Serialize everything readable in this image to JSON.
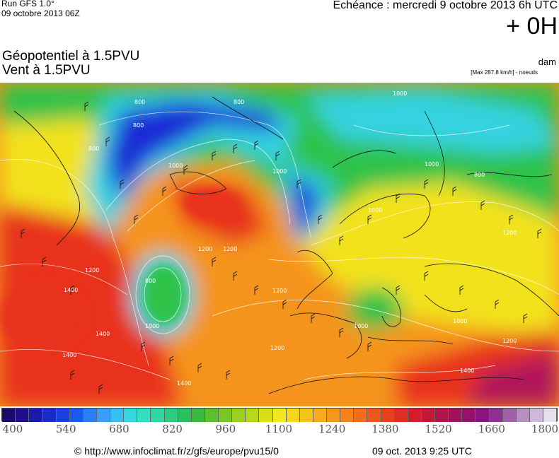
{
  "header": {
    "run": "Run GFS 1.0°",
    "run_date": "09 octobre 2013 06Z",
    "echeance": "Echéance : mercredi 9 octobre 2013 6h UTC",
    "lead_time": "+ 0H",
    "variable_1": "Géopotentiel à 1.5PVU",
    "variable_2": "Vent à 1.5PVU",
    "unit": "dam",
    "max_note": "[Max 287.8 km/h] - noeuds"
  },
  "map": {
    "contour_labels": [
      "800",
      "800",
      "1000",
      "800",
      "1000",
      "1000",
      "800",
      "1000",
      "1200",
      "1000",
      "1200",
      "1200",
      "1400",
      "800",
      "1000",
      "1000",
      "1200",
      "1200",
      "1200",
      "1400",
      "1400",
      "1400",
      "1400",
      "1200",
      "1000",
      "800"
    ],
    "colors": {
      "deep_blue": "#1a2bd6",
      "cyan": "#34d2e0",
      "green": "#2fc24a",
      "yellow": "#f2e21a",
      "orange": "#f5941a",
      "red": "#e8301f",
      "magenta": "#b0185a"
    }
  },
  "colorbar": {
    "colors": [
      "#1a0a6a",
      "#1f0e8c",
      "#1a1aa8",
      "#1a2bc8",
      "#1a3fe0",
      "#1a5af0",
      "#2a7ef8",
      "#3a9ef8",
      "#38bff0",
      "#34d8e0",
      "#30e0c0",
      "#2ed8a0",
      "#2ccc80",
      "#2ac060",
      "#3ab840",
      "#5ac02c",
      "#7ac824",
      "#9ad01e",
      "#bad81a",
      "#d8e018",
      "#f0e81a",
      "#f5d81a",
      "#f5c41a",
      "#f5ae1a",
      "#f5981a",
      "#f5821a",
      "#f26c1c",
      "#ee561e",
      "#e8401e",
      "#e02c22",
      "#d41c2a",
      "#c41836",
      "#b01448",
      "#a0125a",
      "#94126c",
      "#881480",
      "#8c3094",
      "#a060a8",
      "#b890c0",
      "#d0b8d8",
      "#e8e0ec"
    ],
    "ticks": [
      "400",
      "540",
      "680",
      "820",
      "960",
      "1100",
      "1240",
      "1380",
      "1520",
      "1660",
      "1800"
    ]
  },
  "footer": {
    "copyright": "© http://www.infoclimat.fr/z/gfs/europe/pvu15/0",
    "generated": "09 oct. 2013  9:25 UTC"
  }
}
